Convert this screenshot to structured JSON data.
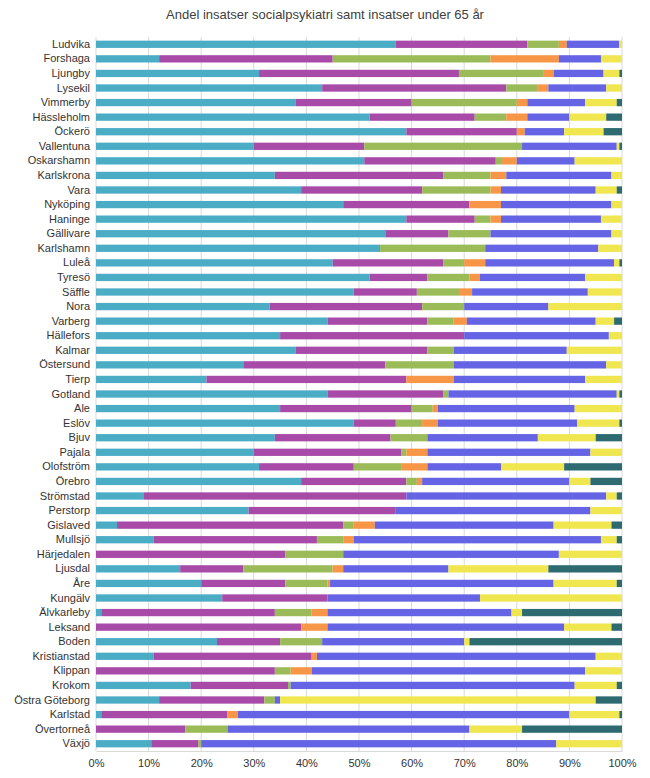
{
  "chart_data": {
    "type": "bar",
    "orientation": "horizontal",
    "stacked": true,
    "grid": true,
    "title": "Andel insatser socialpsykiatri samt insatser under 65 år",
    "categories": [
      "Ludvika",
      "Forshaga",
      "Ljungby",
      "Lysekil",
      "Vimmerby",
      "Hässleholm",
      "Öckerö",
      "Vallentuna",
      "Oskarshamn",
      "Karlskrona",
      "Vara",
      "Nyköping",
      "Haninge",
      "Gällivare",
      "Karlshamn",
      "Luleå",
      "Tyresö",
      "Säffle",
      "Nora",
      "Varberg",
      "Hällefors",
      "Kalmar",
      "Östersund",
      "Tierp",
      "Gotland",
      "Ale",
      "Eslöv",
      "Bjuv",
      "Pajala",
      "Olofström",
      "Örebro",
      "Strömstad",
      "Perstorp",
      "Gislaved",
      "Mullsjö",
      "Härjedalen",
      "Ljusdal",
      "Åre",
      "Kungälv",
      "Älvkarleby",
      "Leksand",
      "Boden",
      "Kristianstad",
      "Klippan",
      "Krokom",
      "Östra Göteborg",
      "Karlstad",
      "Övertorneå",
      "Växjö"
    ],
    "series": [
      {
        "color": "#4bacc6",
        "values": [
          57,
          12,
          31,
          43,
          38,
          52,
          59,
          30,
          51,
          34,
          39,
          47,
          59,
          55,
          54,
          45,
          52,
          49,
          33,
          44,
          35,
          38,
          28,
          21,
          44,
          35,
          49,
          34,
          30,
          31,
          39,
          9,
          29,
          4,
          11,
          0,
          16,
          20,
          24,
          1,
          0,
          23,
          11,
          0,
          18,
          12,
          1,
          0,
          10.5
        ]
      },
      {
        "color": "#a84aa8",
        "values": [
          25,
          33,
          38,
          35,
          22,
          20,
          21,
          21,
          25,
          32,
          23,
          24,
          13,
          12,
          0,
          21,
          11,
          12,
          29,
          19,
          35,
          25,
          27,
          38,
          22,
          25,
          8,
          22,
          28,
          18,
          20,
          50,
          28,
          43,
          31,
          36,
          12,
          16,
          20,
          33,
          39,
          12,
          30,
          34,
          18.5,
          20,
          24,
          17,
          9
        ]
      },
      {
        "color": "#9bbb59",
        "values": [
          6,
          30,
          16,
          6,
          20,
          6,
          0,
          30,
          1,
          9,
          13,
          0,
          3,
          8,
          20,
          4,
          8,
          8,
          8,
          5,
          0,
          5,
          13,
          0,
          1,
          4,
          5,
          7,
          1,
          9,
          2,
          0,
          0,
          2,
          5,
          11,
          17,
          8,
          0,
          7,
          0,
          8,
          0,
          3,
          0.5,
          2,
          0,
          8,
          0.5
        ]
      },
      {
        "color": "#f79646",
        "values": [
          1.5,
          13,
          2,
          2,
          2,
          4,
          1.5,
          0,
          3,
          3,
          2,
          6,
          2,
          0,
          0,
          4,
          2,
          2.5,
          0,
          2.5,
          0,
          0,
          0,
          9,
          0,
          1,
          3,
          0,
          4,
          5,
          1,
          0,
          0,
          4,
          2,
          0,
          2,
          0.5,
          0,
          3,
          5,
          0,
          1,
          4,
          0,
          0,
          2,
          0,
          0
        ]
      },
      {
        "color": "#6464e4",
        "values": [
          10,
          8,
          9.5,
          11,
          11,
          8,
          7.5,
          18,
          11,
          20,
          18,
          21,
          19,
          23,
          21.5,
          24.5,
          20,
          22,
          16,
          24.5,
          27.5,
          21.5,
          29,
          25,
          32,
          26,
          26.5,
          21,
          31,
          14,
          28,
          38,
          37,
          34,
          47,
          41,
          20,
          42.5,
          29,
          35,
          45,
          27,
          53,
          52,
          54,
          1,
          63,
          46,
          67.5
        ]
      },
      {
        "color": "#f0e650",
        "values": [
          0.5,
          4,
          3,
          3,
          6,
          7,
          7.5,
          0.5,
          9,
          2,
          4,
          2,
          4,
          2,
          4.5,
          1,
          7,
          6.5,
          14,
          3.5,
          2.5,
          10.5,
          3,
          7,
          0.5,
          9,
          8,
          11,
          6,
          12,
          4,
          2,
          6,
          11,
          3,
          12,
          19,
          12,
          27,
          2,
          9,
          1,
          5,
          7,
          8,
          60,
          9.5,
          10,
          12.5
        ]
      },
      {
        "color": "#2e6b70",
        "values": [
          0,
          0,
          0.5,
          0,
          1,
          3,
          3.5,
          0.5,
          0,
          0,
          1,
          0,
          0,
          0,
          0,
          0.5,
          0,
          0,
          0,
          1.5,
          0,
          0,
          0,
          0,
          0.5,
          0,
          0.5,
          5,
          0,
          11,
          6,
          1,
          0,
          2,
          1,
          0,
          14,
          1,
          0,
          19,
          2,
          29,
          0,
          0,
          1,
          5,
          0.5,
          19,
          0
        ]
      }
    ],
    "xlim": [
      0,
      100
    ],
    "xticks": [
      {
        "value": 0,
        "label": "0%"
      },
      {
        "value": 10,
        "label": "10%"
      },
      {
        "value": 20,
        "label": "20%"
      },
      {
        "value": 30,
        "label": "30%"
      },
      {
        "value": 40,
        "label": "40%"
      },
      {
        "value": 50,
        "label": "50%"
      },
      {
        "value": 60,
        "label": "60%"
      },
      {
        "value": 70,
        "label": "70%"
      },
      {
        "value": 80,
        "label": "80%"
      },
      {
        "value": 90,
        "label": "90%"
      },
      {
        "value": 100,
        "label": "100%"
      }
    ]
  }
}
